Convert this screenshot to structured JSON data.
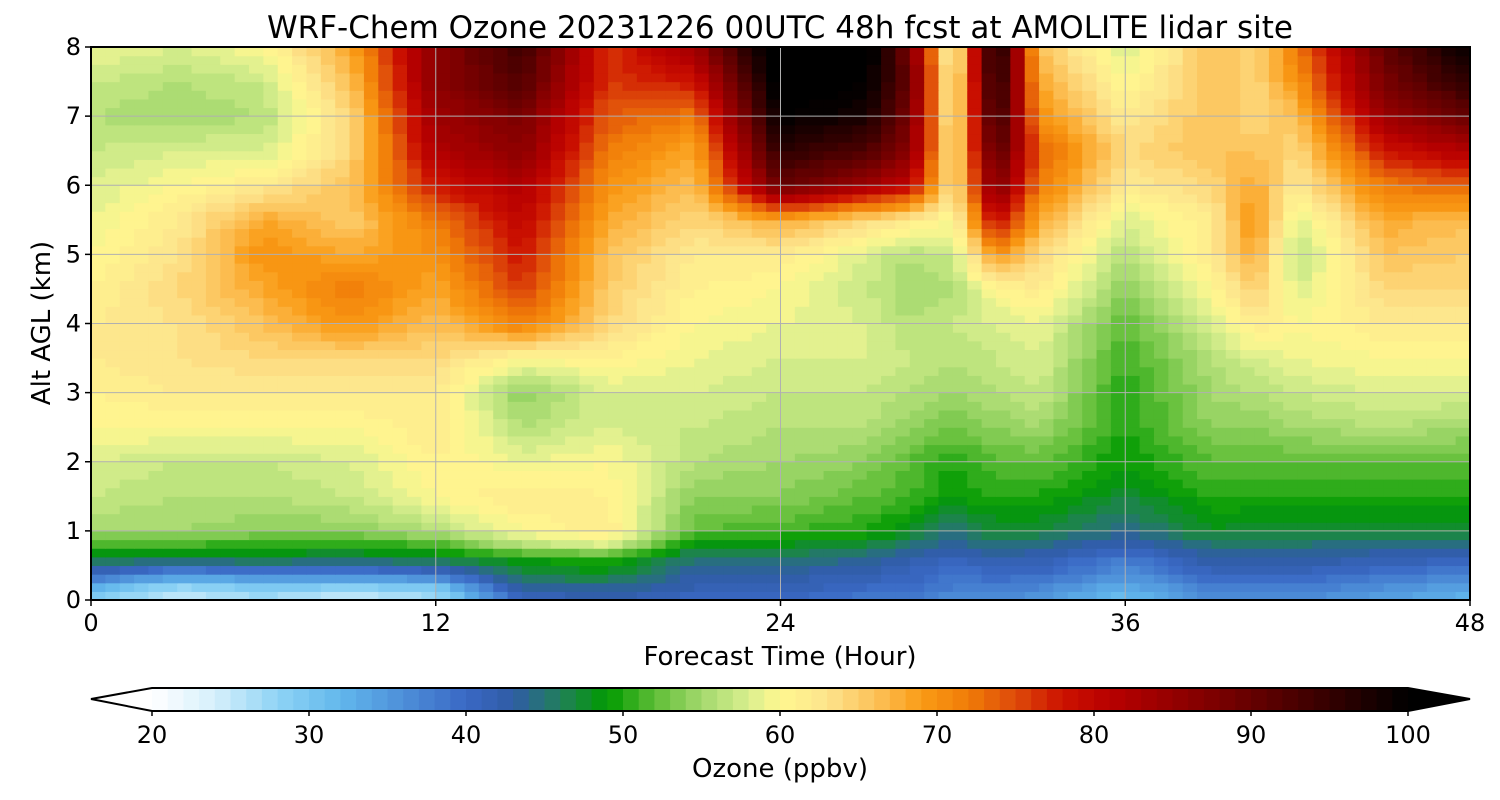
{
  "chart_data": {
    "type": "heatmap",
    "title": "WRF-Chem Ozone  20231226 00UTC 48h fcst at AMOLITE lidar site",
    "xlabel": "Forecast Time (Hour)",
    "ylabel": "Alt AGL (km)",
    "xlim": [
      0,
      48
    ],
    "ylim": [
      0,
      8
    ],
    "xticks": [
      "0",
      "12",
      "24",
      "36",
      "48"
    ],
    "yticks": [
      "0",
      "1",
      "2",
      "3",
      "4",
      "5",
      "6",
      "7",
      "8"
    ],
    "grid": true,
    "x_hours": [
      0,
      3,
      6,
      9,
      12,
      15,
      18,
      21,
      24,
      27,
      28.5,
      30,
      31.5,
      33,
      36,
      39,
      40.5,
      42,
      45,
      48
    ],
    "altitudes_km": [
      0,
      0.2,
      0.4,
      0.6,
      0.8,
      1,
      1.5,
      2,
      2.5,
      3,
      3.5,
      4,
      4.5,
      5,
      5.5,
      6,
      6.5,
      7,
      7.5,
      8
    ],
    "ozone_ppbv": [
      [
        28,
        24,
        26,
        24,
        26,
        40,
        42,
        40,
        40,
        38,
        38,
        36,
        36,
        35,
        31,
        36,
        36,
        36,
        34,
        32
      ],
      [
        33,
        28,
        30,
        29,
        30,
        44,
        44,
        42,
        42,
        40,
        40,
        38,
        38,
        37,
        33,
        38,
        38,
        38,
        36,
        34
      ],
      [
        41,
        37,
        38,
        38,
        40,
        47,
        48,
        43,
        43,
        42,
        41,
        39,
        40,
        40,
        36,
        41,
        41,
        41,
        39,
        38
      ],
      [
        47,
        46,
        47,
        46,
        47,
        49,
        50,
        45,
        45,
        44,
        42,
        41,
        42,
        42,
        38,
        43,
        43,
        43,
        42,
        41
      ],
      [
        51,
        51,
        50,
        50,
        51,
        56,
        58,
        48,
        48,
        47,
        45,
        43,
        45,
        44,
        42,
        45,
        45,
        45,
        44,
        44
      ],
      [
        55,
        55,
        54,
        54,
        56,
        60,
        62,
        52,
        51,
        50,
        48,
        45,
        47,
        47,
        44,
        48,
        47,
        47,
        47,
        47
      ],
      [
        57,
        56,
        56,
        57,
        60,
        62,
        61,
        54,
        54,
        52,
        51,
        49,
        50,
        50,
        47,
        50,
        50,
        50,
        50,
        50
      ],
      [
        58,
        57,
        57,
        58,
        61,
        59,
        60,
        56,
        55,
        54,
        52,
        50,
        52,
        52,
        49,
        52,
        52,
        52,
        52,
        52
      ],
      [
        60,
        60,
        60,
        60,
        62,
        56,
        58,
        57,
        56,
        56,
        54,
        53,
        54,
        55,
        50,
        54,
        54,
        55,
        56,
        55
      ],
      [
        61,
        62,
        62,
        62,
        62,
        54,
        58,
        58,
        57,
        57,
        56,
        55,
        56,
        57,
        50,
        55,
        56,
        57,
        58,
        58
      ],
      [
        62,
        63,
        64,
        64,
        64,
        60,
        61,
        59,
        58,
        58,
        57,
        56,
        57,
        58,
        51,
        56,
        58,
        59,
        60,
        60
      ],
      [
        62,
        63,
        66,
        70,
        66,
        72,
        64,
        60,
        59,
        58,
        56,
        57,
        58,
        59,
        52,
        58,
        62,
        60,
        62,
        62
      ],
      [
        61,
        64,
        68,
        72,
        68,
        76,
        65,
        61,
        60,
        57,
        55,
        56,
        60,
        62,
        54,
        60,
        65,
        58,
        64,
        64
      ],
      [
        60,
        63,
        70,
        68,
        70,
        78,
        66,
        62,
        62,
        58,
        56,
        57,
        70,
        64,
        56,
        62,
        68,
        56,
        66,
        65
      ],
      [
        59,
        62,
        68,
        65,
        72,
        80,
        68,
        64,
        68,
        64,
        62,
        60,
        80,
        68,
        58,
        62,
        70,
        58,
        68,
        66
      ],
      [
        58,
        60,
        62,
        66,
        78,
        82,
        70,
        66,
        90,
        84,
        80,
        62,
        88,
        72,
        62,
        64,
        68,
        62,
        72,
        74
      ],
      [
        57,
        58,
        58,
        64,
        82,
        86,
        72,
        68,
        96,
        92,
        86,
        62,
        92,
        74,
        64,
        66,
        66,
        64,
        78,
        82
      ],
      [
        56,
        55,
        56,
        64,
        84,
        88,
        74,
        72,
        100,
        98,
        88,
        60,
        96,
        70,
        62,
        66,
        64,
        66,
        84,
        90
      ],
      [
        57,
        56,
        57,
        66,
        86,
        92,
        76,
        78,
        102,
        100,
        90,
        60,
        98,
        68,
        60,
        66,
        64,
        70,
        88,
        96
      ],
      [
        59,
        58,
        60,
        68,
        86,
        94,
        76,
        84,
        104,
        102,
        88,
        58,
        100,
        66,
        58,
        66,
        64,
        72,
        90,
        100
      ]
    ],
    "colorbar": {
      "label": "Ozone  (ppbv)",
      "min": 20,
      "max": 100,
      "step": 1,
      "extend": "both",
      "ticks": [
        "20",
        "30",
        "40",
        "50",
        "60",
        "70",
        "80",
        "90",
        "100"
      ],
      "color_stops": [
        [
          20,
          "#ffffff"
        ],
        [
          24,
          "#d6f0fb"
        ],
        [
          28,
          "#8fd3f5"
        ],
        [
          32,
          "#62b7ec"
        ],
        [
          36,
          "#4d8fd8"
        ],
        [
          40,
          "#3a68c4"
        ],
        [
          43,
          "#2f5ca5"
        ],
        [
          46,
          "#217f5a"
        ],
        [
          49,
          "#009a00"
        ],
        [
          52,
          "#5ebd36"
        ],
        [
          55,
          "#a3d86d"
        ],
        [
          58,
          "#d9ef8f"
        ],
        [
          60,
          "#fff78f"
        ],
        [
          63,
          "#fde48c"
        ],
        [
          66,
          "#fcc25a"
        ],
        [
          69,
          "#f99b15"
        ],
        [
          72,
          "#f07c08"
        ],
        [
          75,
          "#de4a0a"
        ],
        [
          78,
          "#cc1200"
        ],
        [
          81,
          "#b80000"
        ],
        [
          86,
          "#8c0000"
        ],
        [
          91,
          "#5c0000"
        ],
        [
          96,
          "#2a0000"
        ],
        [
          100,
          "#000000"
        ]
      ]
    }
  }
}
